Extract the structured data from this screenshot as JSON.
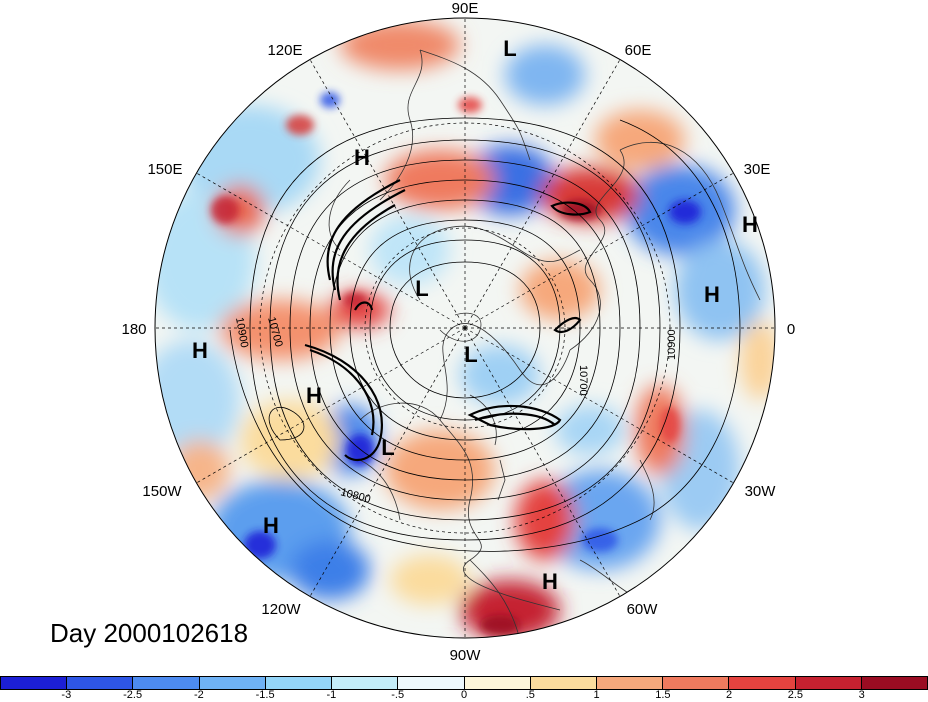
{
  "title": "Day 2000102618",
  "lon_labels": [
    {
      "text": "90E",
      "lon": 90
    },
    {
      "text": "60E",
      "lon": 60
    },
    {
      "text": "30E",
      "lon": 30
    },
    {
      "text": "0",
      "lon": 0
    },
    {
      "text": "30W",
      "lon": -30
    },
    {
      "text": "60W",
      "lon": -60
    },
    {
      "text": "90W",
      "lon": -90
    },
    {
      "text": "120W",
      "lon": -120
    },
    {
      "text": "150W",
      "lon": -150
    },
    {
      "text": "180",
      "lon": 180
    },
    {
      "text": "150E",
      "lon": 150
    },
    {
      "text": "120E",
      "lon": 120
    }
  ],
  "pressure_centers": [
    {
      "type": "L",
      "label": "L"
    },
    {
      "type": "H",
      "label": "H"
    },
    {
      "type": "H",
      "label": "H"
    },
    {
      "type": "H",
      "label": "H"
    },
    {
      "type": "L",
      "label": "L"
    },
    {
      "type": "L",
      "label": "L"
    },
    {
      "type": "H",
      "label": "H"
    },
    {
      "type": "H",
      "label": "H"
    },
    {
      "type": "L",
      "label": "L"
    },
    {
      "type": "H",
      "label": "H"
    },
    {
      "type": "H",
      "label": "H"
    }
  ],
  "contour_labels": [
    "10900",
    "10700",
    "10800",
    "10700",
    "10900"
  ],
  "colorbar": {
    "colors": [
      "#1c1fd6",
      "#2e56e6",
      "#4d8bf0",
      "#6fb2f5",
      "#94d5f8",
      "#c4edf9",
      "#edf8fc",
      "#fdf6da",
      "#fbdc9e",
      "#f6a87c",
      "#ef7a5e",
      "#e4433f",
      "#c52130",
      "#9a0c22"
    ],
    "ticks": [
      "-3",
      "-2.5",
      "-2",
      "-1.5",
      "-1",
      "-.5",
      "0",
      ".5",
      "1",
      "1.5",
      "2",
      "2.5",
      "3"
    ]
  }
}
